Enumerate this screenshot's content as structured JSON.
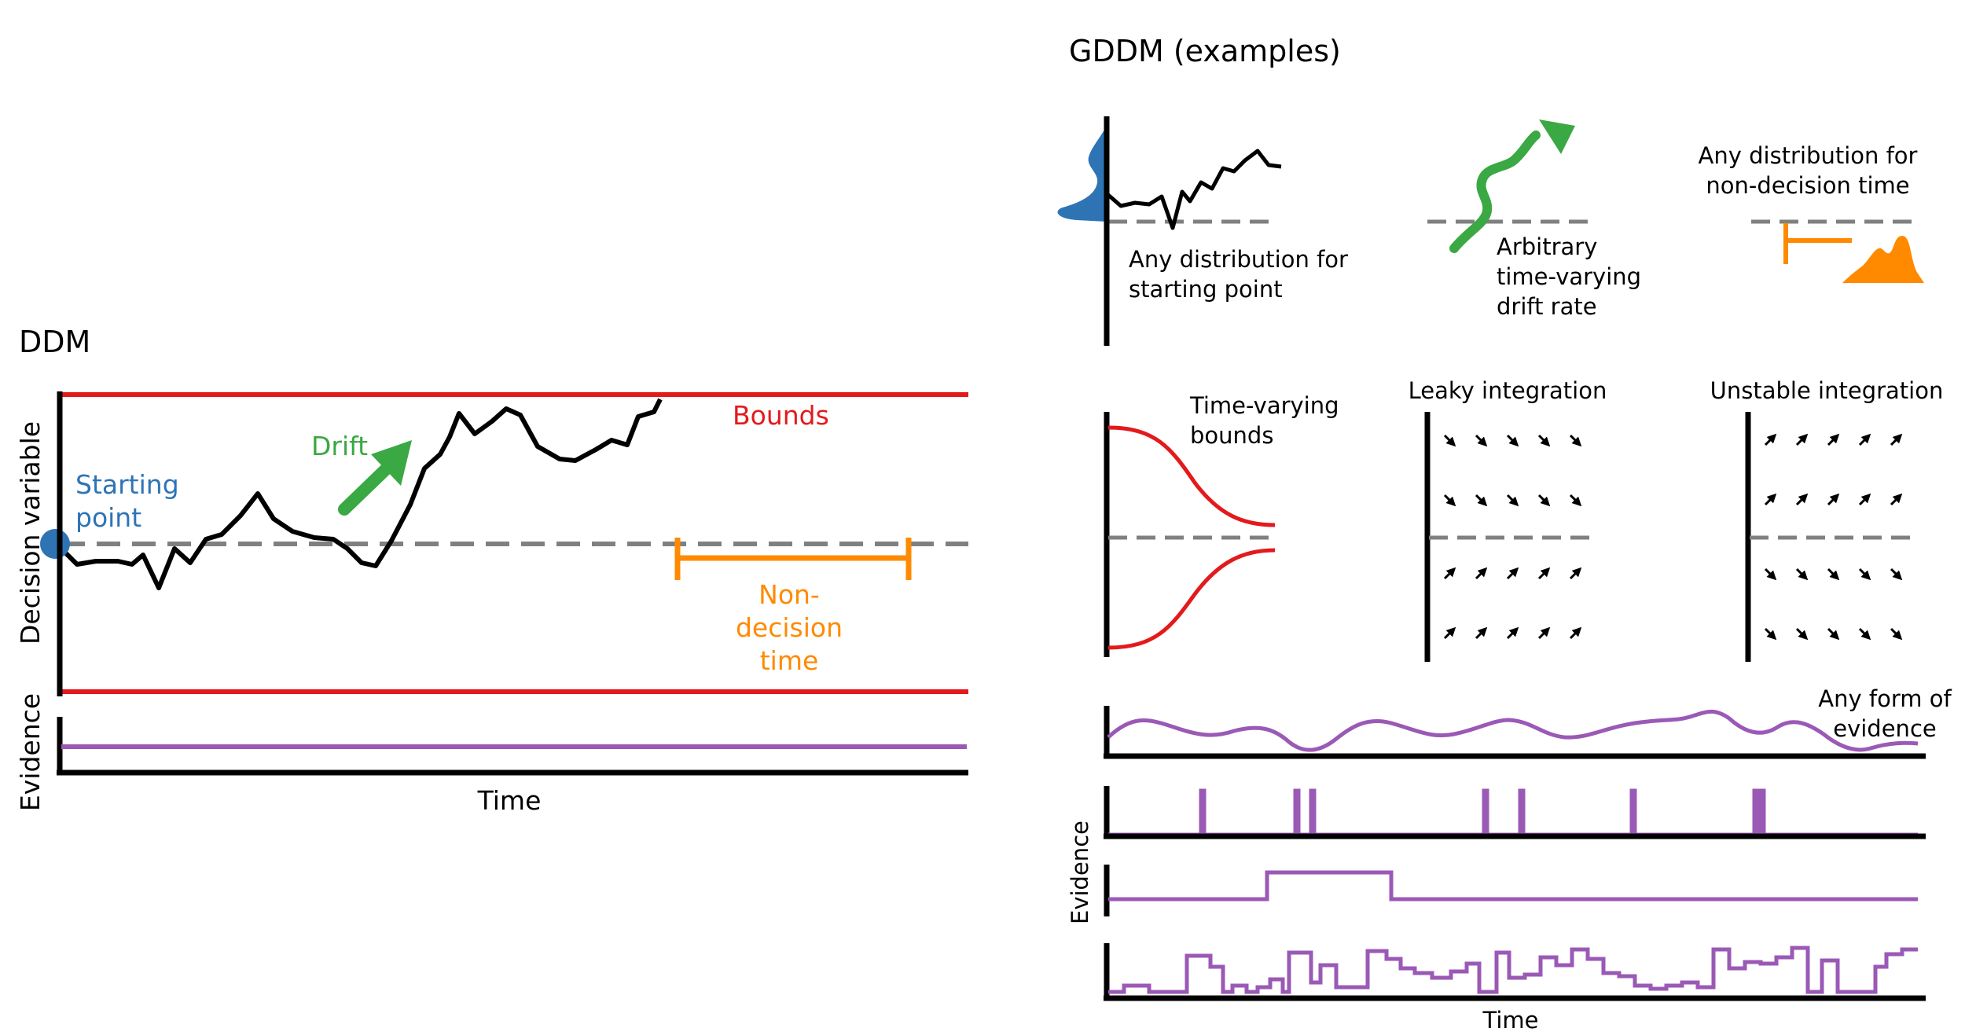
{
  "colors": {
    "bound": "#e31a1c",
    "start": "#2e74b5",
    "drift": "#3aa843",
    "nondecision": "#ff8a00",
    "evidence": "#9b59b6",
    "dashed": "#808080",
    "axis": "#000000"
  },
  "ddm": {
    "title": "DDM",
    "ylabel": "Decision variable",
    "evidence_label": "Evidence",
    "time_label": "Time",
    "bounds_label": "Bounds",
    "start_label_1": "Starting",
    "start_label_2": "point",
    "drift_label": "Drift",
    "nd_label_1": "Non-",
    "nd_label_2": "decision",
    "nd_label_3": "time"
  },
  "gddm": {
    "title": "GDDM (examples)",
    "start_dist_1": "Any distribution for",
    "start_dist_2": "starting point",
    "drift_1": "Arbitrary",
    "drift_2": "time-varying",
    "drift_3": "drift rate",
    "nd_1": "Any distribution for",
    "nd_2": "non-decision time",
    "bounds_1": "Time-varying",
    "bounds_2": "bounds",
    "leaky": "Leaky integration",
    "unstable": "Unstable integration",
    "evidence_1": "Any form of",
    "evidence_2": "evidence",
    "evidence_ylabel": "Evidence",
    "time_label": "Time"
  }
}
